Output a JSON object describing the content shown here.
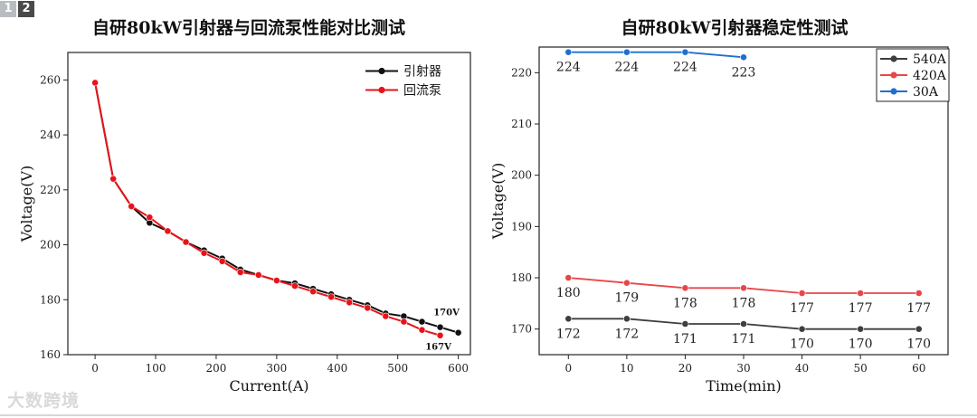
{
  "badges": [
    "1",
    "2"
  ],
  "watermark": "大数跨境",
  "chart_data": [
    {
      "type": "line",
      "title": "自研80kW引射器与回流泵性能对比测试",
      "xlabel": "Current(A)",
      "ylabel": "Voltage(V)",
      "xlim": [
        -45,
        620
      ],
      "ylim": [
        160,
        270
      ],
      "xticks": [
        0,
        100,
        200,
        300,
        400,
        500,
        600
      ],
      "yticks": [
        160,
        180,
        200,
        220,
        240,
        260
      ],
      "legend_position": "top-right",
      "series": [
        {
          "name": "引射器",
          "color": "#111111",
          "x": [
            0,
            30,
            60,
            90,
            120,
            150,
            180,
            210,
            240,
            270,
            300,
            330,
            360,
            390,
            420,
            450,
            480,
            510,
            540,
            570,
            600
          ],
          "y": [
            259,
            224,
            214,
            208,
            205,
            201,
            198,
            195,
            191,
            189,
            187,
            186,
            184,
            182,
            180,
            178,
            175,
            174,
            172,
            170,
            168
          ]
        },
        {
          "name": "回流泵",
          "color": "#e8131a",
          "x": [
            0,
            30,
            60,
            90,
            120,
            150,
            180,
            210,
            240,
            270,
            300,
            330,
            360,
            390,
            420,
            450,
            480,
            510,
            540,
            570
          ],
          "y": [
            259,
            224,
            214,
            210,
            205,
            201,
            197,
            194,
            190,
            189,
            187,
            185,
            183,
            181,
            179,
            177,
            174,
            172,
            169,
            167
          ]
        }
      ],
      "annotations": [
        {
          "text": "170V",
          "x": 570,
          "y": 170
        },
        {
          "text": "167V",
          "x": 570,
          "y": 167
        }
      ]
    },
    {
      "type": "line",
      "title": "自研80kW引射器稳定性测试",
      "xlabel": "Time(min)",
      "ylabel": "Voltage(V)",
      "xlim": [
        -5,
        65
      ],
      "ylim": [
        165,
        225
      ],
      "xticks": [
        0,
        10,
        20,
        30,
        40,
        50,
        60
      ],
      "yticks": [
        170,
        180,
        190,
        200,
        210,
        220
      ],
      "legend_position": "top-right",
      "series": [
        {
          "name": "540A",
          "color": "#3e3e3e",
          "x": [
            0,
            10,
            20,
            30,
            40,
            50,
            60
          ],
          "y": [
            172,
            172,
            171,
            171,
            170,
            170,
            170
          ],
          "labels": [
            "172",
            "172",
            "171",
            "171",
            "170",
            "170",
            "170"
          ]
        },
        {
          "name": "420A",
          "color": "#e8474a",
          "x": [
            0,
            10,
            20,
            30,
            40,
            50,
            60
          ],
          "y": [
            180,
            179,
            178,
            178,
            177,
            177,
            177
          ],
          "labels": [
            "180",
            "179",
            "178",
            "178",
            "177",
            "177",
            "177"
          ]
        },
        {
          "name": "30A",
          "color": "#1f6fd1",
          "x": [
            0,
            10,
            20,
            30
          ],
          "y": [
            224,
            224,
            224,
            223
          ],
          "labels": [
            "224",
            "224",
            "224",
            "223"
          ]
        }
      ]
    }
  ]
}
